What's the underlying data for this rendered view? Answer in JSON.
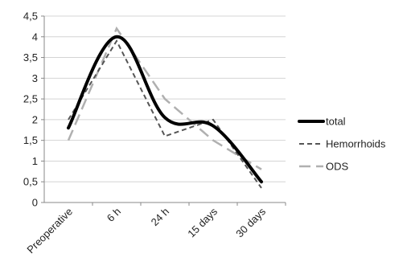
{
  "chart_data": {
    "type": "line",
    "title": "",
    "xlabel": "",
    "ylabel": "",
    "categories": [
      "Preoperative",
      "6 h",
      "24 h",
      "15 days",
      "30 days"
    ],
    "ylim": [
      0,
      4.5
    ],
    "yticks": [
      "0",
      "0,5",
      "1",
      "1,5",
      "2",
      "2,5",
      "3",
      "3,5",
      "4",
      "4,5"
    ],
    "grid": true,
    "legend_position": "right",
    "series": [
      {
        "name": "total",
        "values": [
          1.8,
          4.0,
          2.05,
          1.85,
          0.5
        ],
        "color": "#000000",
        "style": "solid-thick",
        "smooth": true
      },
      {
        "name": "Hemorrhoids",
        "values": [
          2.0,
          3.9,
          1.6,
          2.0,
          0.35
        ],
        "color": "#555555",
        "style": "dashed",
        "smooth": false
      },
      {
        "name": "ODS",
        "values": [
          1.5,
          4.2,
          2.5,
          1.5,
          0.8
        ],
        "color": "#b0b0b0",
        "style": "long-dash",
        "smooth": false
      }
    ]
  }
}
